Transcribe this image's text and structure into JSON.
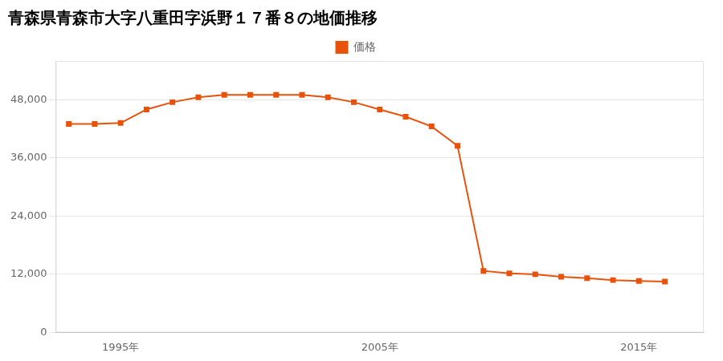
{
  "chart_data": {
    "type": "line",
    "title": "青森県青森市大字八重田字浜野１７番８の地価推移",
    "x": [
      1993,
      1994,
      1995,
      1996,
      1997,
      1998,
      1999,
      2000,
      2001,
      2002,
      2003,
      2004,
      2005,
      2006,
      2007,
      2008,
      2009,
      2010,
      2011,
      2012,
      2013,
      2014,
      2015,
      2016
    ],
    "series": [
      {
        "name": "価格",
        "color": "#E8520A",
        "marker": "square",
        "values": [
          43000,
          43000,
          43200,
          46000,
          47500,
          48500,
          49000,
          49000,
          49000,
          49000,
          48500,
          47500,
          46000,
          44500,
          42500,
          38500,
          12700,
          12200,
          12000,
          11500,
          11200,
          10800,
          10600,
          10500
        ]
      }
    ],
    "xlim": [
      1992.5,
      2017.5
    ],
    "xticks": [
      {
        "value": 1995,
        "label": "1995年"
      },
      {
        "value": 2005,
        "label": "2005年"
      },
      {
        "value": 2015,
        "label": "2015年"
      }
    ],
    "ylim": [
      0,
      56000
    ],
    "yticks": [
      0,
      {
        "value": 12000,
        "label": "12,000"
      },
      {
        "value": 24000,
        "label": "24,000"
      },
      {
        "value": 36000,
        "label": "36,000"
      },
      {
        "value": 48000,
        "label": "48,000"
      }
    ],
    "grid": "y",
    "legend": "top"
  }
}
